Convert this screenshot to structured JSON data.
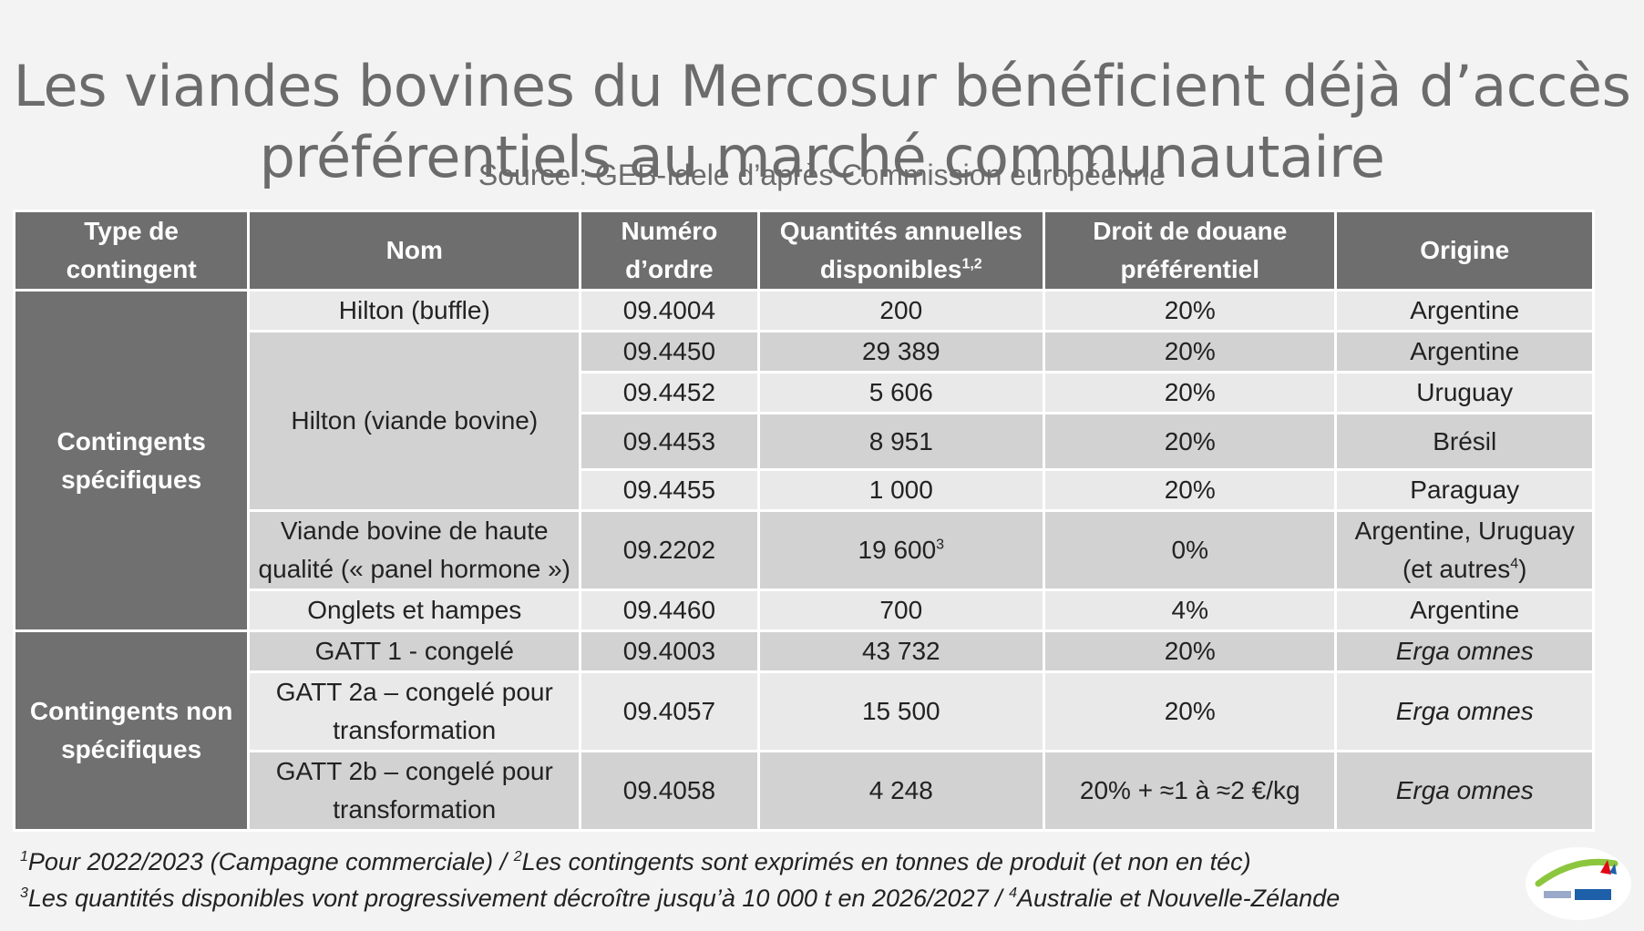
{
  "title_line1": "Les viandes bovines du Mercosur bénéficient déjà d’accès",
  "title_line2": "préférentiels au marché communautaire",
  "source": "Source : GEB-Idele d’après Commission européenne",
  "headers": {
    "type": [
      "Type de",
      "contingent"
    ],
    "nom": "Nom",
    "numero": [
      "Numéro",
      "d’ordre"
    ],
    "quantites": [
      "Quantités annuelles",
      "disponibles",
      "1,2"
    ],
    "droit": [
      "Droit de douane",
      "préférentiel"
    ],
    "origine": "Origine"
  },
  "groups": {
    "specific": [
      "Contingents",
      "spécifiques"
    ],
    "nonspecific": [
      "Contingents non",
      "spécifiques"
    ]
  },
  "rows": [
    {
      "nom": "Hilton (buffle)",
      "numero": "09.4004",
      "quantite": "200",
      "droit": "20%",
      "origine": "Argentine"
    },
    {
      "nom": "Hilton (viande bovine)",
      "numero": "09.4450",
      "quantite": "29 389",
      "droit": "20%",
      "origine": "Argentine"
    },
    {
      "numero": "09.4452",
      "quantite": "5 606",
      "droit": "20%",
      "origine": "Uruguay"
    },
    {
      "numero": "09.4453",
      "quantite": "8 951",
      "droit": "20%",
      "origine": "Brésil"
    },
    {
      "numero": "09.4455",
      "quantite": "1 000",
      "droit": "20%",
      "origine": "Paraguay"
    },
    {
      "nom": [
        "Viande bovine de haute",
        "qualité (« panel hormone »)"
      ],
      "numero": "09.2202",
      "quantite": "19 600",
      "quantite_sup": "3",
      "droit": "0%",
      "origine": [
        "Argentine, Uruguay",
        "(et autres",
        "4",
        ")"
      ]
    },
    {
      "nom": "Onglets et hampes",
      "numero": "09.4460",
      "quantite": "700",
      "droit": "4%",
      "origine": "Argentine"
    },
    {
      "nom": "GATT 1 - congelé",
      "numero": "09.4003",
      "quantite": "43 732",
      "droit": "20%",
      "origine": "Erga omnes"
    },
    {
      "nom": [
        "GATT 2a – congelé pour",
        "transformation"
      ],
      "numero": "09.4057",
      "quantite": "15 500",
      "droit": "20%",
      "origine": "Erga omnes"
    },
    {
      "nom": [
        "GATT 2b – congelé pour",
        "transformation"
      ],
      "numero": "09.4058",
      "quantite": "4 248",
      "droit": "20% + ≈1 à ≈2 €/kg",
      "origine": "Erga omnes"
    }
  ],
  "footnotes": {
    "line1_sup1": "1",
    "line1_a": "Pour 2022/2023 (Campagne commerciale) / ",
    "line1_sup2": "2",
    "line1_b": "Les contingents sont exprimés en tonnes de produit (et non en téc)",
    "line2_sup3": "3",
    "line2_a": "Les quantités disponibles vont progressivement décroître jusqu’à 10 000 t en 2026/2027 / ",
    "line2_sup4": "4",
    "line2_b": "Australie et Nouvelle-Zélande"
  },
  "logo": {
    "icon": "idele-logo",
    "colors": {
      "green": "#8cc63f",
      "red": "#e30613",
      "blue": "#1d5fa8"
    }
  }
}
